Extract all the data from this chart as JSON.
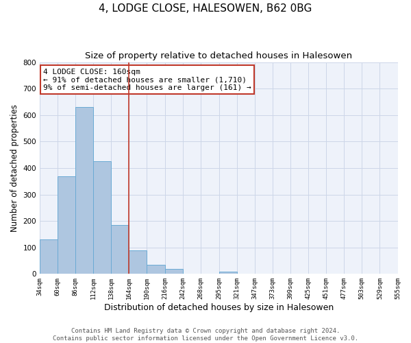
{
  "title": "4, LODGE CLOSE, HALESOWEN, B62 0BG",
  "subtitle": "Size of property relative to detached houses in Halesowen",
  "xlabel": "Distribution of detached houses by size in Halesowen",
  "ylabel": "Number of detached properties",
  "bin_edges": [
    34,
    60,
    86,
    112,
    138,
    164,
    190,
    216,
    242,
    268,
    295,
    321,
    347,
    373,
    399,
    425,
    451,
    477,
    503,
    529,
    555
  ],
  "bar_heights": [
    130,
    370,
    630,
    425,
    185,
    88,
    35,
    18,
    0,
    0,
    8,
    0,
    0,
    0,
    0,
    0,
    0,
    0,
    0,
    0
  ],
  "bar_color": "#aec6e0",
  "bar_edge_color": "#6aaad4",
  "vline_color": "#c0392b",
  "vline_x": 164,
  "annotation_text": "4 LODGE CLOSE: 160sqm\n← 91% of detached houses are smaller (1,710)\n9% of semi-detached houses are larger (161) →",
  "annotation_box_color": "white",
  "annotation_box_edge_color": "#c0392b",
  "ylim": [
    0,
    800
  ],
  "yticks": [
    0,
    100,
    200,
    300,
    400,
    500,
    600,
    700,
    800
  ],
  "tick_labels": [
    "34sqm",
    "60sqm",
    "86sqm",
    "112sqm",
    "138sqm",
    "164sqm",
    "190sqm",
    "216sqm",
    "242sqm",
    "268sqm",
    "295sqm",
    "321sqm",
    "347sqm",
    "373sqm",
    "399sqm",
    "425sqm",
    "451sqm",
    "477sqm",
    "503sqm",
    "529sqm",
    "555sqm"
  ],
  "grid_color": "#ccd6e8",
  "background_color": "#eef2fa",
  "footer_text": "Contains HM Land Registry data © Crown copyright and database right 2024.\nContains public sector information licensed under the Open Government Licence v3.0.",
  "title_fontsize": 11,
  "subtitle_fontsize": 9.5,
  "xlabel_fontsize": 9,
  "ylabel_fontsize": 8.5,
  "annotation_fontsize": 8,
  "footer_fontsize": 6.5,
  "tick_fontsize": 6.5
}
